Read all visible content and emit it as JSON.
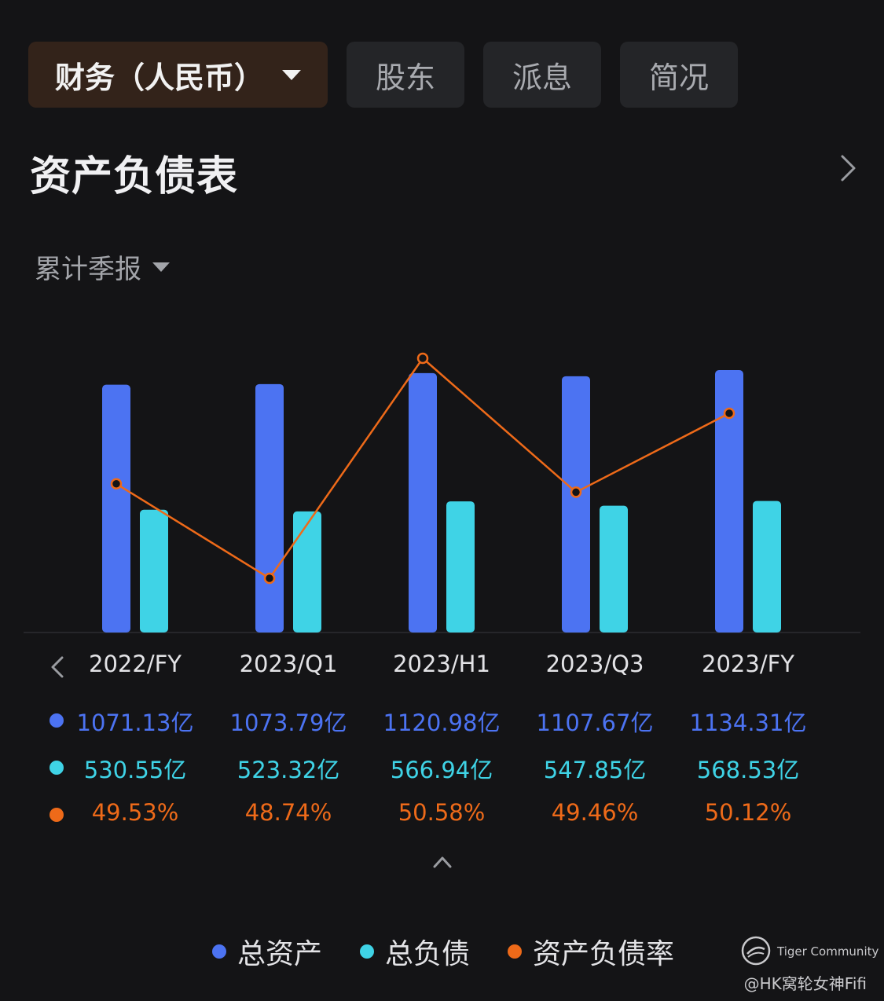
{
  "tabs": [
    {
      "label": "财务（人民币）"
    },
    {
      "label": "股东"
    },
    {
      "label": "派息"
    },
    {
      "label": "简况"
    }
  ],
  "section": {
    "title": "资产负债表"
  },
  "period_selector": {
    "label": "累计季报"
  },
  "colors": {
    "total_assets": "#4c73f2",
    "total_liabilities": "#3fd3e6",
    "debt_ratio": "#ee6a19"
  },
  "table": {
    "periods": [
      "2022/FY",
      "2023/Q1",
      "2023/H1",
      "2023/Q3",
      "2023/FY"
    ],
    "total_assets": [
      "1071.13亿",
      "1073.79亿",
      "1120.98亿",
      "1107.67亿",
      "1134.31亿"
    ],
    "total_liabilities": [
      "530.55亿",
      "523.32亿",
      "566.94亿",
      "547.85亿",
      "568.53亿"
    ],
    "debt_ratio": [
      "49.53%",
      "48.74%",
      "50.58%",
      "49.46%",
      "50.12%"
    ]
  },
  "chart_data": {
    "type": "bar",
    "categories": [
      "2022/FY",
      "2023/Q1",
      "2023/H1",
      "2023/Q3",
      "2023/FY"
    ],
    "series": [
      {
        "name": "总资产",
        "type": "bar",
        "values": [
          1071.13,
          1073.79,
          1120.98,
          1107.67,
          1134.31
        ]
      },
      {
        "name": "总负债",
        "type": "bar",
        "values": [
          530.55,
          523.32,
          566.94,
          547.85,
          568.53
        ]
      },
      {
        "name": "资产负债率",
        "type": "line",
        "values": [
          49.53,
          48.74,
          50.58,
          49.46,
          50.12
        ]
      }
    ],
    "legend": [
      "总资产",
      "总负债",
      "资产负债率"
    ],
    "legend_position": "bottom"
  },
  "legend": {
    "items": [
      "总资产",
      "总负债",
      "资产负债率"
    ]
  },
  "watermark": {
    "brand": "Tiger Community",
    "user": "@HK窝轮女神Fifi"
  }
}
